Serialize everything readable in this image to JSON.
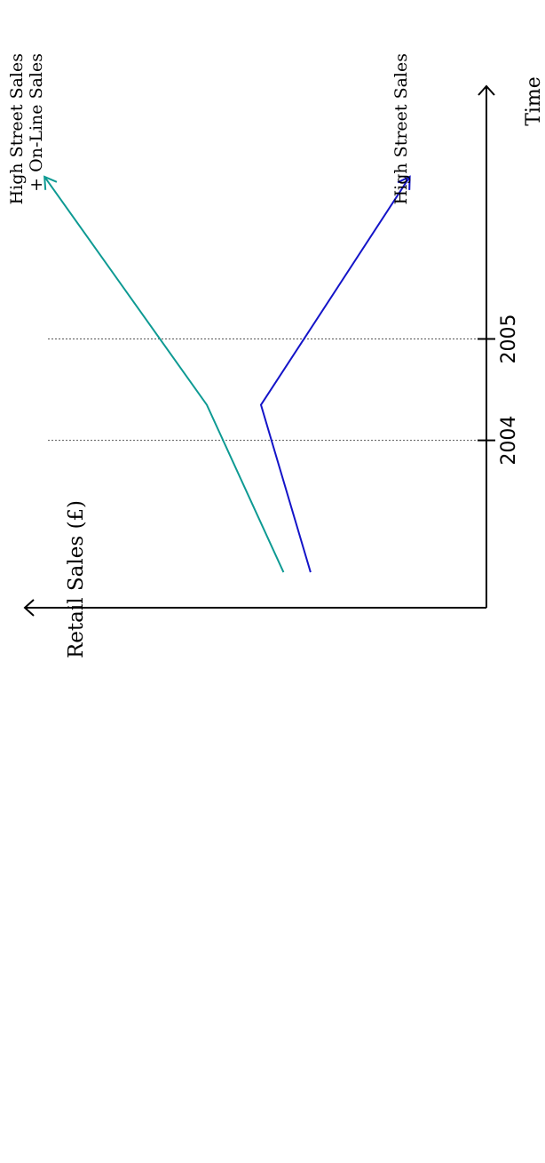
{
  "chart_data": {
    "type": "line",
    "title": "",
    "xlabel": "Time",
    "ylabel": "Retail Sales (£)",
    "x_ticks": [
      "2004",
      "2005"
    ],
    "x_range": [
      2002.35,
      2007.3
    ],
    "y_range": [
      0,
      10
    ],
    "y_ticks_shown": false,
    "grid": false,
    "reference_lines": [
      "2004",
      "2005"
    ],
    "orientation": "rotated 90° counter-clockwise",
    "series": [
      {
        "name": "High Street Sales + On-Line Sales",
        "name_lines": [
          "High Street Sales",
          "+ On-Line Sales"
        ],
        "color": "#0e9a93",
        "points": [
          [
            2002.7,
            4.5
          ],
          [
            2004.35,
            6.2
          ],
          [
            2006.6,
            9.8
          ]
        ],
        "end_arrow": true
      },
      {
        "name": "High Street Sales",
        "name_lines": [
          "High Street Sales"
        ],
        "color": "#1414c8",
        "points": [
          [
            2002.7,
            3.9
          ],
          [
            2004.35,
            5.0
          ],
          [
            2006.6,
            1.7
          ]
        ],
        "end_arrow": true
      }
    ]
  }
}
